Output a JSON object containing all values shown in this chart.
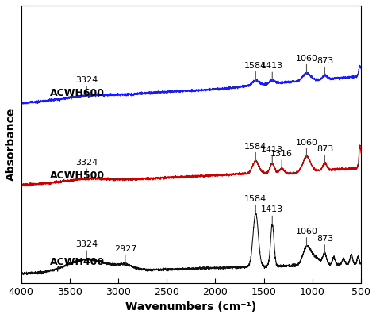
{
  "xlabel": "Wavenumbers (cm⁻¹)",
  "ylabel": "Absorbance",
  "colors": {
    "ACWH600": "#1a1aff",
    "ACWH500": "#cc0000",
    "ACWH400": "#111111"
  },
  "offsets": {
    "ACWH600": 0.9,
    "ACWH500": 0.46,
    "ACWH400": 0.0
  },
  "label_fontsize": 9,
  "annot_fontsize": 8,
  "tick_fontsize": 9
}
